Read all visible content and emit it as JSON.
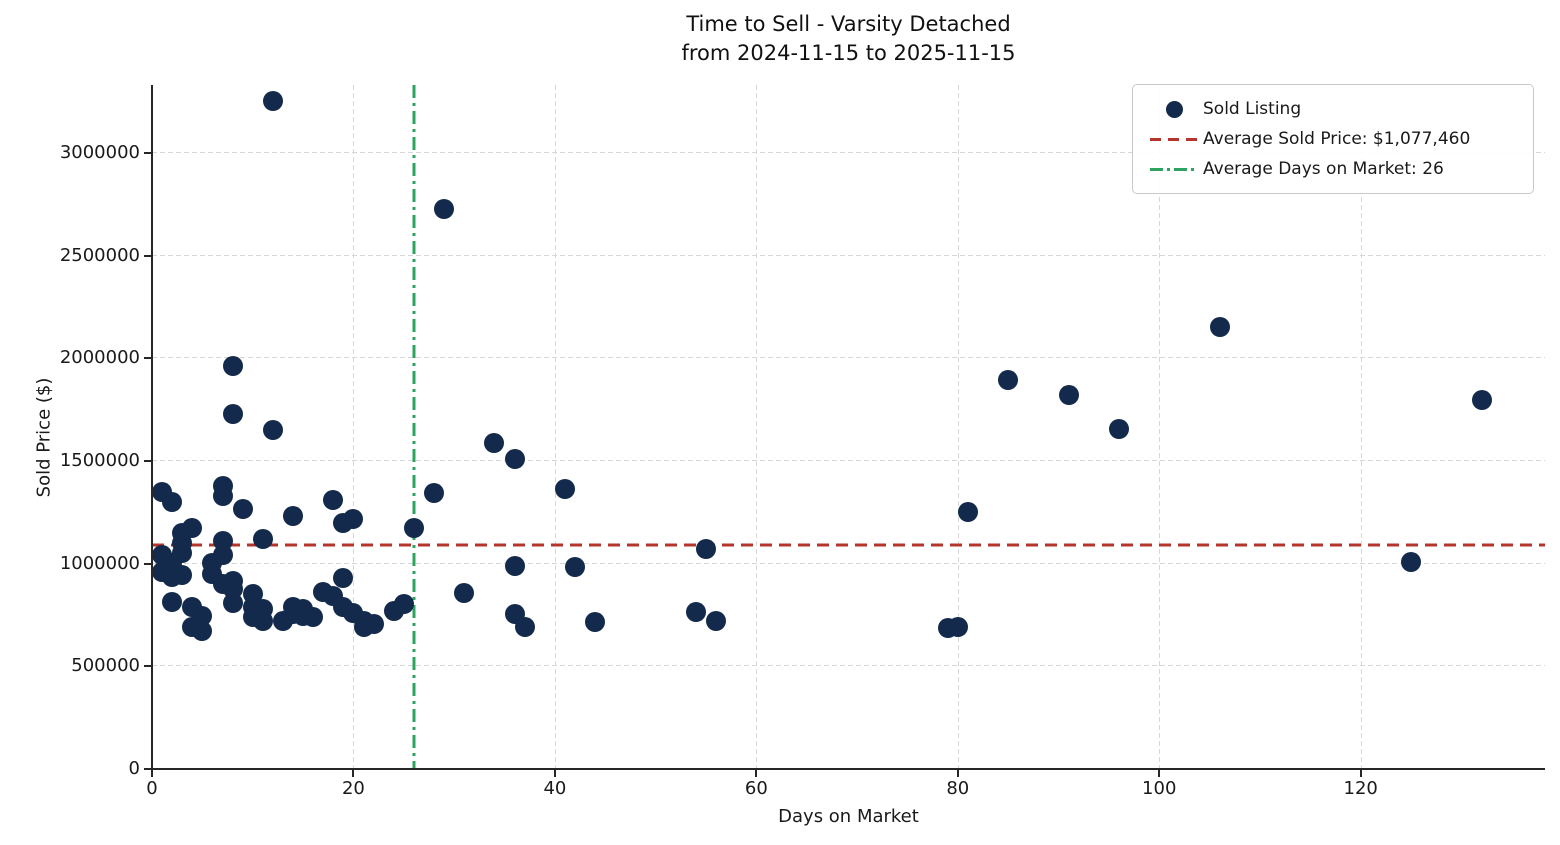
{
  "title": {
    "line1": "Time to Sell - Varsity Detached",
    "line2": "from 2024-11-15 to 2025-11-15"
  },
  "axes": {
    "x": {
      "label": "Days on Market",
      "ticks": [
        0,
        20,
        40,
        60,
        80,
        100,
        120
      ],
      "range": [
        0,
        138.3
      ]
    },
    "y": {
      "label": "Sold Price ($)",
      "ticks": [
        0,
        500000,
        1000000,
        1500000,
        2000000,
        2500000,
        3000000
      ],
      "range": [
        0,
        3330000
      ]
    }
  },
  "legend": {
    "items": [
      {
        "label": "Sold Listing",
        "marker": "dot"
      },
      {
        "label": "Average Sold Price: $1,077,460",
        "marker": "dashed-line"
      },
      {
        "label": "Average Days on Market: 26",
        "marker": "dashdot-line"
      }
    ]
  },
  "colors": {
    "point": "#132a4c",
    "avg_price_line": "#b5342b",
    "avg_days_line": "#2ca45f",
    "grid": "#d7d7d7",
    "text": "#1a1a1a"
  },
  "chart_data": {
    "type": "scatter",
    "title": "Time to Sell - Varsity Detached from 2024-11-15 to 2025-11-15",
    "xlabel": "Days on Market",
    "ylabel": "Sold Price ($)",
    "xlim": [
      0,
      138.3
    ],
    "ylim": [
      0,
      3330000
    ],
    "grid": true,
    "legend_position": "upper right",
    "avg_sold_price": 1077460,
    "avg_days_on_market": 26,
    "series": [
      {
        "name": "Sold Listing",
        "points": [
          [
            1,
            1350000
          ],
          [
            2,
            1300000
          ],
          [
            1,
            1040000
          ],
          [
            1,
            960000
          ],
          [
            2,
            935000
          ],
          [
            3,
            945000
          ],
          [
            3,
            1150000
          ],
          [
            3,
            1100000
          ],
          [
            3,
            1050000
          ],
          [
            2,
            1005000
          ],
          [
            4,
            1175000
          ],
          [
            2,
            815000
          ],
          [
            4,
            790000
          ],
          [
            5,
            745000
          ],
          [
            4,
            690000
          ],
          [
            5,
            670000
          ],
          [
            6,
            1005000
          ],
          [
            6,
            950000
          ],
          [
            7,
            900000
          ],
          [
            8,
            915000
          ],
          [
            8,
            875000
          ],
          [
            7,
            1380000
          ],
          [
            7,
            1330000
          ],
          [
            9,
            1265000
          ],
          [
            7,
            1110000
          ],
          [
            7,
            1040000
          ],
          [
            8,
            1960000
          ],
          [
            8,
            1730000
          ],
          [
            12,
            1650000
          ],
          [
            12,
            3250000
          ],
          [
            11,
            1120000
          ],
          [
            14,
            1230000
          ],
          [
            8,
            810000
          ],
          [
            10,
            850000
          ],
          [
            10,
            790000
          ],
          [
            10,
            740000
          ],
          [
            11,
            780000
          ],
          [
            11,
            720000
          ],
          [
            13,
            720000
          ],
          [
            14,
            755000
          ],
          [
            14,
            790000
          ],
          [
            15,
            745000
          ],
          [
            15,
            780000
          ],
          [
            16,
            740000
          ],
          [
            17,
            860000
          ],
          [
            18,
            840000
          ],
          [
            18,
            1310000
          ],
          [
            19,
            1200000
          ],
          [
            20,
            1215000
          ],
          [
            19,
            930000
          ],
          [
            19,
            790000
          ],
          [
            20,
            760000
          ],
          [
            21,
            720000
          ],
          [
            21,
            690000
          ],
          [
            22,
            705000
          ],
          [
            24,
            770000
          ],
          [
            25,
            805000
          ],
          [
            26,
            1175000
          ],
          [
            28,
            1345000
          ],
          [
            29,
            2725000
          ],
          [
            31,
            855000
          ],
          [
            34,
            1585000
          ],
          [
            36,
            1510000
          ],
          [
            36,
            990000
          ],
          [
            37,
            690000
          ],
          [
            36,
            755000
          ],
          [
            41,
            1365000
          ],
          [
            42,
            985000
          ],
          [
            44,
            715000
          ],
          [
            54,
            765000
          ],
          [
            55,
            1070000
          ],
          [
            56,
            720000
          ],
          [
            79,
            685000
          ],
          [
            80,
            690000
          ],
          [
            81,
            1250000
          ],
          [
            85,
            1895000
          ],
          [
            91,
            1820000
          ],
          [
            96,
            1655000
          ],
          [
            106,
            2150000
          ],
          [
            125,
            1010000
          ],
          [
            132,
            1795000
          ]
        ]
      }
    ]
  }
}
